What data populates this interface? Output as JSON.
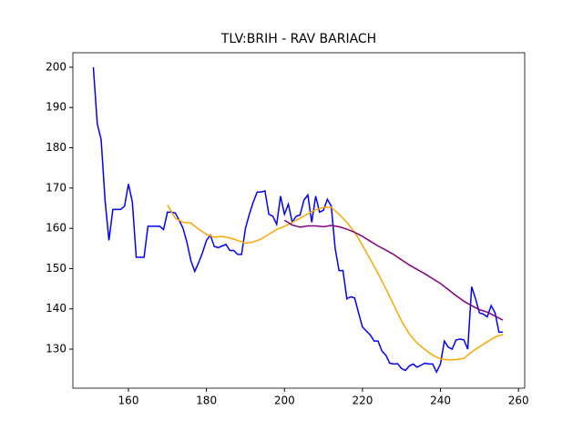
{
  "chart_data": {
    "type": "line",
    "title": "TLV:BRIH - RAV BARIACH",
    "xlim": [
      145.75,
      261.6
    ],
    "ylim": [
      120.3,
      203.6
    ],
    "xticks": [
      160,
      180,
      200,
      220,
      240,
      260
    ],
    "yticks": [
      130,
      140,
      150,
      160,
      170,
      180,
      190,
      200
    ],
    "series": [
      {
        "color": "#0000ff",
        "x": [
          151,
          152,
          153,
          154,
          155,
          156,
          157,
          158,
          159,
          160,
          161,
          162,
          163,
          164,
          165,
          166,
          167,
          168,
          169,
          170,
          171,
          172,
          173,
          174,
          175,
          176,
          177,
          178,
          179,
          180,
          181,
          182,
          183,
          184,
          185,
          186,
          187,
          188,
          189,
          190,
          191,
          192,
          193,
          194,
          195,
          196,
          197,
          198,
          199,
          200,
          201,
          202,
          203,
          204,
          205,
          206,
          207,
          208,
          209,
          210,
          211,
          212,
          213,
          214,
          215,
          216,
          217,
          218,
          219,
          220,
          221,
          222,
          223,
          224,
          225,
          226,
          227,
          228,
          229,
          230,
          231,
          232,
          233,
          234,
          235,
          236,
          237,
          238,
          239,
          240,
          241,
          242,
          243,
          244,
          245,
          246,
          247,
          248,
          249,
          250,
          251,
          252,
          253,
          254,
          255,
          256
        ],
        "values": [
          200,
          186,
          182,
          167,
          157,
          164.7,
          164.7,
          164.7,
          165.5,
          171,
          166.5,
          152.8,
          152.8,
          152.8,
          160.5,
          160.5,
          160.5,
          160.5,
          159.7,
          164,
          164,
          163.8,
          162,
          160,
          156.5,
          152,
          149.3,
          151.5,
          154,
          157,
          158.3,
          155.5,
          155.2,
          155.6,
          156,
          154.5,
          154.5,
          153.5,
          153.5,
          160,
          163.5,
          166.5,
          169,
          169,
          169.3,
          163.5,
          163,
          161,
          168,
          163.5,
          166,
          161.5,
          163,
          163.3,
          167,
          168.3,
          161.5,
          168,
          164,
          164.5,
          167.2,
          165.5,
          155,
          149.5,
          149.5,
          142.5,
          143,
          142.7,
          139,
          135.5,
          134.5,
          133.5,
          132,
          132,
          129.5,
          128.5,
          126.5,
          126.3,
          126.4,
          125.2,
          124.7,
          125.8,
          126.3,
          125.5,
          126,
          126.5,
          126.3,
          126.3,
          124.3,
          126.3,
          132,
          130.5,
          130,
          132.3,
          132.5,
          132.3,
          130,
          145.5,
          142.5,
          139,
          138.7,
          138,
          140.8,
          139,
          134.2,
          134.2
        ]
      },
      {
        "color": "#ffa500",
        "x": [
          170,
          172,
          174,
          176,
          178,
          180,
          182,
          184,
          186,
          188,
          190,
          192,
          194,
          196,
          198,
          200,
          202,
          204,
          206,
          208,
          210,
          212,
          214,
          216,
          218,
          220,
          222,
          224,
          226,
          228,
          230,
          232,
          234,
          236,
          238,
          240,
          242,
          244,
          246,
          248,
          250,
          252,
          254,
          256
        ],
        "values": [
          165.8,
          162.5,
          161.5,
          161.3,
          159.8,
          158.5,
          157.8,
          158,
          157.6,
          157,
          156.3,
          156.6,
          157.3,
          158.5,
          159.7,
          160.5,
          161.5,
          162.5,
          163.6,
          164.6,
          165.2,
          165.2,
          163.5,
          161.5,
          159,
          155.8,
          152.3,
          148.8,
          145,
          141,
          137,
          133.8,
          131.5,
          129.9,
          128.5,
          127.6,
          127.3,
          127.4,
          127.7,
          129.3,
          130.6,
          131.8,
          133,
          133.6
        ]
      },
      {
        "color": "#800080",
        "x": [
          200,
          202,
          204,
          206,
          208,
          210,
          212,
          214,
          216,
          218,
          220,
          222,
          224,
          226,
          228,
          230,
          232,
          234,
          236,
          238,
          240,
          242,
          244,
          246,
          248,
          250,
          252,
          254,
          256
        ],
        "values": [
          162,
          160.8,
          160.3,
          160.6,
          160.6,
          160.4,
          160.7,
          160.4,
          159.8,
          159,
          158,
          156.8,
          155.6,
          154.6,
          153.5,
          152.2,
          150.9,
          149.8,
          148.7,
          147.5,
          146.3,
          144.8,
          143.3,
          141.9,
          140.8,
          139.8,
          139.2,
          138.2,
          137.2
        ]
      }
    ]
  }
}
